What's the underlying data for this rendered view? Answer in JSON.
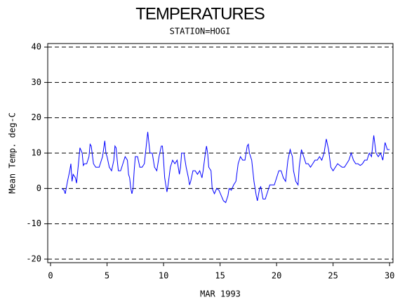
{
  "chart_data": {
    "type": "line",
    "title": "TEMPERATURES",
    "subtitle": "STATION=HOGI",
    "x_label": "MAR 1993",
    "y_label": "Mean Temp. deg-C",
    "color": "#0000ff",
    "grid": true,
    "xlim": [
      -0.25,
      30.3
    ],
    "ylim": [
      -21,
      41
    ],
    "xticks": [
      0,
      5,
      10,
      15,
      20,
      25,
      30
    ],
    "yticks": [
      -20,
      -10,
      0,
      10,
      20,
      30,
      40
    ],
    "x": [
      1.0,
      1.2,
      1.3,
      1.5,
      1.7,
      1.8,
      1.9,
      2.0,
      2.2,
      2.3,
      2.5,
      2.6,
      2.8,
      2.9,
      3.0,
      3.2,
      3.4,
      3.5,
      3.6,
      3.8,
      4.0,
      4.3,
      4.6,
      4.8,
      4.9,
      5.0,
      5.2,
      5.4,
      5.6,
      5.7,
      5.8,
      5.9,
      6.0,
      6.2,
      6.4,
      6.6,
      6.8,
      6.9,
      7.0,
      7.1,
      7.2,
      7.3,
      7.4,
      7.5,
      7.7,
      7.9,
      8.1,
      8.3,
      8.5,
      8.6,
      8.7,
      8.8,
      9.0,
      9.2,
      9.4,
      9.6,
      9.8,
      9.9,
      10.0,
      10.1,
      10.2,
      10.3,
      10.4,
      10.6,
      10.8,
      11.0,
      11.2,
      11.4,
      11.5,
      11.6,
      11.8,
      12.0,
      12.2,
      12.3,
      12.4,
      12.6,
      12.8,
      13.0,
      13.2,
      13.4,
      13.5,
      13.7,
      13.8,
      13.9,
      14.0,
      14.2,
      14.3,
      14.5,
      14.7,
      14.9,
      15.1,
      15.3,
      15.5,
      15.7,
      15.8,
      16.0,
      16.2,
      16.4,
      16.6,
      16.8,
      17.0,
      17.2,
      17.4,
      17.5,
      17.6,
      17.8,
      18.0,
      18.2,
      18.3,
      18.5,
      18.6,
      18.8,
      19.0,
      19.2,
      19.4,
      19.6,
      19.8,
      20.0,
      20.2,
      20.4,
      20.6,
      20.8,
      21.0,
      21.2,
      21.4,
      21.5,
      21.7,
      21.9,
      22.0,
      22.2,
      22.4,
      22.6,
      22.8,
      23.0,
      23.2,
      23.4,
      23.6,
      23.8,
      24.0,
      24.2,
      24.4,
      24.6,
      24.8,
      25.0,
      25.2,
      25.4,
      25.6,
      25.8,
      26.0,
      26.2,
      26.4,
      26.6,
      26.8,
      27.0,
      27.2,
      27.4,
      27.6,
      27.8,
      28.0,
      28.2,
      28.4,
      28.6,
      28.8,
      29.0,
      29.2,
      29.4,
      29.6,
      29.8,
      30.0
    ],
    "values": [
      0,
      -0.5,
      -1.5,
      2,
      5,
      7,
      2,
      4,
      3,
      1.5,
      8,
      11.5,
      10,
      6.5,
      7,
      7,
      9,
      12.5,
      12,
      7,
      6,
      6,
      9,
      13.5,
      10,
      9,
      6,
      5,
      8,
      12,
      11.5,
      8,
      5,
      5,
      7,
      9,
      8,
      4,
      3,
      0,
      -1.5,
      0,
      5,
      9,
      9,
      6,
      6,
      7,
      13,
      16,
      13,
      10,
      10,
      6,
      5,
      9,
      12,
      12,
      8,
      3,
      1,
      -1,
      1,
      6,
      8,
      7,
      8,
      4,
      6,
      10,
      10,
      6,
      3,
      1,
      2,
      5,
      5,
      4,
      5,
      3,
      5,
      10,
      12,
      10,
      6,
      5,
      0,
      -1.5,
      0,
      -0.5,
      -2,
      -3.5,
      -4,
      -2,
      0,
      -0.5,
      1,
      2,
      7,
      9,
      8,
      8,
      12,
      12.5,
      10,
      8,
      2,
      -2,
      -3.5,
      0,
      0.5,
      -3,
      -3,
      -1,
      1,
      1,
      1,
      3,
      5,
      5,
      3,
      2,
      8,
      11,
      9,
      5,
      2,
      1,
      6,
      11,
      9,
      7,
      7,
      6,
      7,
      8,
      8,
      9,
      8,
      10,
      14,
      11,
      6,
      5,
      6,
      7,
      6.5,
      6,
      6,
      7,
      8,
      10,
      8,
      7,
      7,
      6.5,
      7,
      8,
      8,
      10,
      9,
      15,
      10,
      9,
      10,
      8,
      13,
      11,
      11
    ]
  }
}
